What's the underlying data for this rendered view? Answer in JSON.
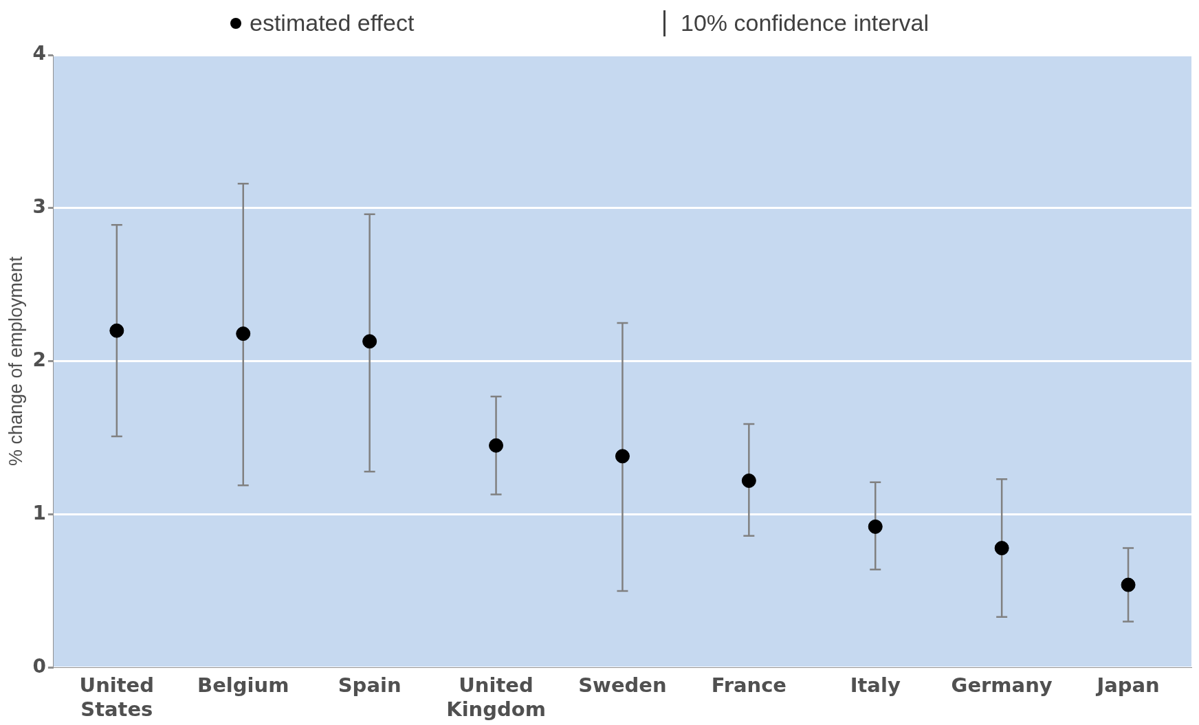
{
  "chart_data": {
    "type": "scatter",
    "ylabel": "% change of employment",
    "categories": [
      "United States",
      "Belgium",
      "Spain",
      "United Kingdom",
      "Sweden",
      "France",
      "Italy",
      "Germany",
      "Japan"
    ],
    "series": [
      {
        "name": "estimated effect",
        "color": "#000000",
        "values": [
          2.2,
          2.18,
          2.13,
          1.45,
          1.38,
          1.22,
          0.92,
          0.78,
          0.54
        ],
        "errors": [
          [
            1.51,
            2.89
          ],
          [
            1.19,
            3.16
          ],
          [
            1.28,
            2.96
          ],
          [
            1.13,
            1.77
          ],
          [
            0.5,
            2.25
          ],
          [
            0.86,
            1.59
          ],
          [
            0.64,
            1.21
          ],
          [
            0.33,
            1.23
          ],
          [
            0.3,
            0.78
          ]
        ]
      }
    ],
    "annotations": [
      "10% confidence interval"
    ],
    "ylim": [
      0,
      4
    ],
    "yticks": [
      0,
      1,
      2,
      3,
      4
    ],
    "grid": "y",
    "legend": "top",
    "marker": "circle"
  }
}
